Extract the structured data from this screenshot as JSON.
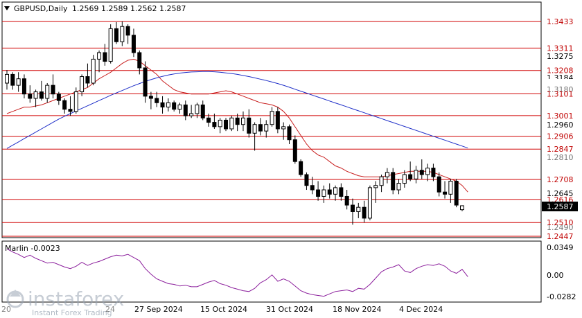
{
  "header": {
    "symbol": "GBPUSD,Daily",
    "ohlc": "1.2569 1.2589 1.2562 1.2587",
    "triangle_icon": "triangle-down-icon"
  },
  "indicator": {
    "label": "Marlin -0.0023",
    "ticks": [
      "0.0349",
      "0.00",
      "-0.0282"
    ],
    "ylim": [
      -0.0282,
      0.0349
    ],
    "color": "#8b1e9c"
  },
  "price_axis": {
    "ticks": [
      "1.3275",
      "1.2960",
      "1.2645"
    ],
    "current": "1.2587",
    "partial": [
      "1.3184",
      "1.3180",
      "1.2810",
      "1.2490"
    ]
  },
  "levels": [
    "1.3433",
    "1.3311",
    "1.3208",
    "1.3101",
    "1.3001",
    "1.2906",
    "1.2847",
    "1.2708",
    "1.2616",
    "1.2510",
    "1.2447"
  ],
  "dates": [
    "27 Sep 2024",
    "15 Oct 2024",
    "31 Oct 2024",
    "18 Nov 2024",
    "4 Dec 2024"
  ],
  "watermark": {
    "brand": "instaforex",
    "tagline": "Instant Forex Trading",
    "partial_left": "20",
    "partial_mid": "24"
  },
  "colors": {
    "level_line": "#d00000",
    "ma_fast": "#c81e1e",
    "ma_slow": "#1e2ec8",
    "candle": "#000000",
    "current_price_box": "#000000"
  },
  "chart_data": [
    {
      "type": "candlestick",
      "title": "GBPUSD,Daily",
      "ylim": [
        1.2447,
        1.3433
      ],
      "horizontal_levels": [
        1.3433,
        1.3311,
        1.3208,
        1.3101,
        1.3001,
        1.2906,
        1.2847,
        1.2708,
        1.2616,
        1.251,
        1.2447
      ],
      "series": [
        {
          "kind": "ohlc",
          "values": [
            [
              1.315,
              1.321,
              1.312,
              1.319
            ],
            [
              1.319,
              1.32,
              1.312,
              1.314
            ],
            [
              1.314,
              1.32,
              1.311,
              1.317
            ],
            [
              1.317,
              1.319,
              1.308,
              1.31
            ],
            [
              1.31,
              1.314,
              1.306,
              1.308
            ],
            [
              1.308,
              1.312,
              1.304,
              1.311
            ],
            [
              1.311,
              1.316,
              1.307,
              1.308
            ],
            [
              1.308,
              1.315,
              1.306,
              1.314
            ],
            [
              1.314,
              1.319,
              1.308,
              1.31
            ],
            [
              1.31,
              1.311,
              1.305,
              1.307
            ],
            [
              1.307,
              1.308,
              1.301,
              1.303
            ],
            [
              1.303,
              1.309,
              1.3,
              1.302
            ],
            [
              1.302,
              1.313,
              1.301,
              1.311
            ],
            [
              1.311,
              1.319,
              1.309,
              1.318
            ],
            [
              1.318,
              1.324,
              1.313,
              1.315
            ],
            [
              1.315,
              1.328,
              1.314,
              1.326
            ],
            [
              1.326,
              1.33,
              1.32,
              1.329
            ],
            [
              1.329,
              1.333,
              1.323,
              1.325
            ],
            [
              1.325,
              1.342,
              1.324,
              1.34
            ],
            [
              1.34,
              1.343,
              1.333,
              1.334
            ],
            [
              1.334,
              1.3434,
              1.332,
              1.341
            ],
            [
              1.341,
              1.342,
              1.333,
              1.337
            ],
            [
              1.337,
              1.34,
              1.327,
              1.329
            ],
            [
              1.329,
              1.33,
              1.319,
              1.322
            ],
            [
              1.322,
              1.325,
              1.306,
              1.309
            ],
            [
              1.309,
              1.311,
              1.303,
              1.308
            ],
            [
              1.308,
              1.311,
              1.304,
              1.306
            ],
            [
              1.306,
              1.309,
              1.301,
              1.304
            ],
            [
              1.304,
              1.308,
              1.302,
              1.306
            ],
            [
              1.306,
              1.307,
              1.302,
              1.303
            ],
            [
              1.303,
              1.306,
              1.301,
              1.305
            ],
            [
              1.305,
              1.307,
              1.298,
              1.3
            ],
            [
              1.3,
              1.305,
              1.299,
              1.301
            ],
            [
              1.301,
              1.306,
              1.299,
              1.305
            ],
            [
              1.305,
              1.307,
              1.298,
              1.299
            ],
            [
              1.299,
              1.301,
              1.295,
              1.297
            ],
            [
              1.297,
              1.301,
              1.294,
              1.295
            ],
            [
              1.295,
              1.299,
              1.292,
              1.298
            ],
            [
              1.298,
              1.299,
              1.293,
              1.294
            ],
            [
              1.294,
              1.3,
              1.293,
              1.299
            ],
            [
              1.299,
              1.301,
              1.293,
              1.296
            ],
            [
              1.296,
              1.302,
              1.293,
              1.299
            ],
            [
              1.299,
              1.303,
              1.29,
              1.292
            ],
            [
              1.292,
              1.297,
              1.284,
              1.296
            ],
            [
              1.296,
              1.299,
              1.291,
              1.293
            ],
            [
              1.293,
              1.298,
              1.29,
              1.296
            ],
            [
              1.296,
              1.304,
              1.295,
              1.302
            ],
            [
              1.302,
              1.304,
              1.292,
              1.294
            ],
            [
              1.294,
              1.297,
              1.289,
              1.295
            ],
            [
              1.295,
              1.296,
              1.287,
              1.289
            ],
            [
              1.289,
              1.291,
              1.278,
              1.279
            ],
            [
              1.279,
              1.28,
              1.272,
              1.273
            ],
            [
              1.273,
              1.274,
              1.266,
              1.268
            ],
            [
              1.268,
              1.272,
              1.264,
              1.266
            ],
            [
              1.266,
              1.27,
              1.261,
              1.263
            ],
            [
              1.263,
              1.268,
              1.26,
              1.266
            ],
            [
              1.266,
              1.269,
              1.262,
              1.264
            ],
            [
              1.264,
              1.268,
              1.261,
              1.267
            ],
            [
              1.267,
              1.269,
              1.261,
              1.263
            ],
            [
              1.263,
              1.266,
              1.257,
              1.259
            ],
            [
              1.259,
              1.262,
              1.25,
              1.256
            ],
            [
              1.256,
              1.26,
              1.253,
              1.258
            ],
            [
              1.258,
              1.261,
              1.251,
              1.253
            ],
            [
              1.253,
              1.268,
              1.252,
              1.267
            ],
            [
              1.267,
              1.27,
              1.26,
              1.268
            ],
            [
              1.268,
              1.273,
              1.265,
              1.272
            ],
            [
              1.272,
              1.276,
              1.269,
              1.274
            ],
            [
              1.274,
              1.276,
              1.264,
              1.266
            ],
            [
              1.266,
              1.271,
              1.264,
              1.269
            ],
            [
              1.269,
              1.275,
              1.267,
              1.273
            ],
            [
              1.273,
              1.279,
              1.27,
              1.271
            ],
            [
              1.271,
              1.277,
              1.269,
              1.275
            ],
            [
              1.275,
              1.28,
              1.271,
              1.273
            ],
            [
              1.273,
              1.278,
              1.27,
              1.276
            ],
            [
              1.276,
              1.278,
              1.27,
              1.272
            ],
            [
              1.272,
              1.274,
              1.263,
              1.265
            ],
            [
              1.265,
              1.27,
              1.262,
              1.264
            ],
            [
              1.264,
              1.271,
              1.26,
              1.27
            ],
            [
              1.27,
              1.271,
              1.258,
              1.259
            ],
            [
              1.2569,
              1.2589,
              1.2562,
              1.2587
            ]
          ]
        },
        {
          "kind": "ma_fast",
          "color": "#c81e1e",
          "values": [
            1.301,
            1.302,
            1.303,
            1.304,
            1.304,
            1.3045,
            1.305,
            1.306,
            1.307,
            1.308,
            1.309,
            1.31,
            1.311,
            1.312,
            1.313,
            1.315,
            1.317,
            1.3185,
            1.32,
            1.322,
            1.324,
            1.3255,
            1.326,
            1.325,
            1.323,
            1.321,
            1.319,
            1.316,
            1.314,
            1.312,
            1.311,
            1.3105,
            1.31,
            1.31,
            1.31,
            1.31,
            1.3105,
            1.311,
            1.3115,
            1.311,
            1.31,
            1.309,
            1.308,
            1.307,
            1.306,
            1.3055,
            1.305,
            1.304,
            1.302,
            1.299,
            1.295,
            1.291,
            1.287,
            1.284,
            1.282,
            1.281,
            1.279,
            1.277,
            1.276,
            1.2745,
            1.2735,
            1.2725,
            1.272,
            1.272,
            1.272,
            1.272,
            1.2725,
            1.273,
            1.2735,
            1.274,
            1.2745,
            1.2745,
            1.2745,
            1.2745,
            1.274,
            1.273,
            1.272,
            1.271,
            1.27,
            1.268,
            1.265
          ]
        },
        {
          "kind": "ma_slow",
          "color": "#1e2ec8",
          "values": [
            1.285,
            1.2865,
            1.288,
            1.2895,
            1.291,
            1.2925,
            1.294,
            1.2955,
            1.297,
            1.2985,
            1.2998,
            1.301,
            1.3022,
            1.3034,
            1.3046,
            1.3058,
            1.307,
            1.3082,
            1.3094,
            1.3105,
            1.3116,
            1.3127,
            1.3138,
            1.3148,
            1.3158,
            1.3166,
            1.3174,
            1.3181,
            1.3187,
            1.3192,
            1.3196,
            1.3199,
            1.3201,
            1.3202,
            1.3203,
            1.3203,
            1.3202,
            1.32,
            1.3197,
            1.3194,
            1.319,
            1.3185,
            1.318,
            1.3174,
            1.3168,
            1.3162,
            1.3155,
            1.3148,
            1.314,
            1.3131,
            1.3122,
            1.3113,
            1.3104,
            1.3095,
            1.3086,
            1.3077,
            1.3068,
            1.3059,
            1.305,
            1.3041,
            1.3032,
            1.3023,
            1.3014,
            1.3005,
            1.2996,
            1.2987,
            1.2978,
            1.2969,
            1.296,
            1.2951,
            1.2942,
            1.2933,
            1.2924,
            1.2915,
            1.2906,
            1.2897,
            1.2888,
            1.2879,
            1.287,
            1.2861,
            1.2852
          ]
        }
      ]
    },
    {
      "type": "line",
      "title": "Marlin -0.0023",
      "ylim": [
        -0.0282,
        0.0349
      ],
      "series": [
        {
          "values": [
            0.033,
            0.029,
            0.026,
            0.022,
            0.025,
            0.021,
            0.018,
            0.015,
            0.016,
            0.013,
            0.01,
            0.008,
            0.011,
            0.016,
            0.012,
            0.015,
            0.017,
            0.02,
            0.023,
            0.025,
            0.024,
            0.026,
            0.022,
            0.018,
            0.008,
            0.001,
            -0.005,
            -0.008,
            -0.011,
            -0.012,
            -0.014,
            -0.013,
            -0.015,
            -0.015,
            -0.012,
            -0.009,
            -0.007,
            -0.011,
            -0.013,
            -0.016,
            -0.018,
            -0.02,
            -0.021,
            -0.017,
            -0.01,
            -0.006,
            0.0,
            -0.008,
            -0.005,
            -0.008,
            -0.014,
            -0.02,
            -0.023,
            -0.025,
            -0.026,
            -0.027,
            -0.024,
            -0.021,
            -0.02,
            -0.019,
            -0.021,
            -0.017,
            -0.018,
            -0.012,
            -0.004,
            0.004,
            0.008,
            0.01,
            0.013,
            0.005,
            0.003,
            0.008,
            0.011,
            0.013,
            0.012,
            0.014,
            0.011,
            0.005,
            0.002,
            0.007,
            -0.0023
          ]
        }
      ]
    }
  ]
}
